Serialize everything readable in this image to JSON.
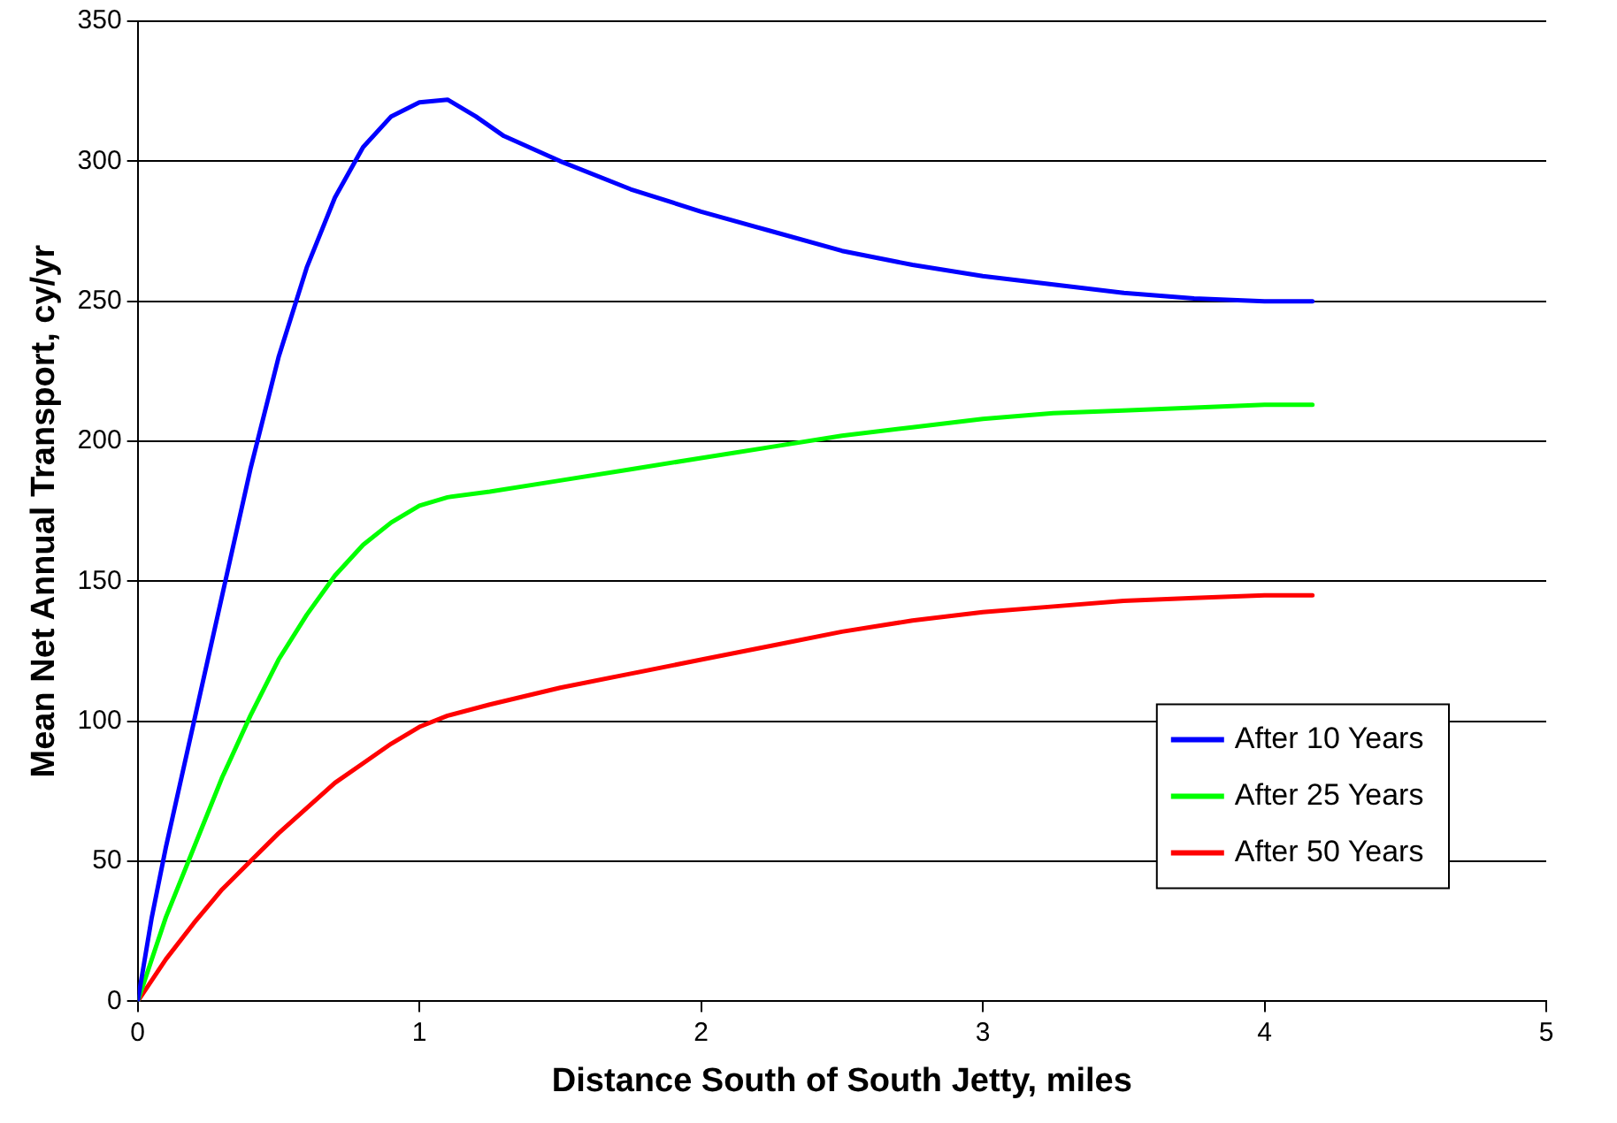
{
  "chart_data": {
    "type": "line",
    "xlabel": "Distance South of South Jetty, miles",
    "ylabel": "Mean Net Annual Transport, cy/yr",
    "xlim": [
      0,
      5
    ],
    "xticks": [
      0,
      1,
      2,
      3,
      4,
      5
    ],
    "ylim": [
      0,
      350
    ],
    "yticks": [
      0,
      50,
      100,
      150,
      200,
      250,
      300,
      350
    ],
    "grid": "y",
    "legend": "bottom right",
    "marker": "none",
    "line_style": "solid",
    "series": [
      {
        "name": "After 10 Years",
        "color": "#0000ff",
        "x": [
          0,
          0.05,
          0.1,
          0.2,
          0.3,
          0.4,
          0.5,
          0.6,
          0.7,
          0.8,
          0.9,
          1.0,
          1.1,
          1.2,
          1.3,
          1.5,
          1.75,
          2.0,
          2.25,
          2.5,
          2.75,
          3.0,
          3.25,
          3.5,
          3.75,
          4.0,
          4.17
        ],
        "values": [
          0,
          30,
          55,
          100,
          145,
          190,
          230,
          262,
          287,
          305,
          316,
          321,
          322,
          316,
          309,
          300,
          290,
          282,
          275,
          268,
          263,
          259,
          256,
          253,
          251,
          250,
          250
        ]
      },
      {
        "name": "After 25 Years",
        "color": "#00ff00",
        "x": [
          0,
          0.1,
          0.2,
          0.3,
          0.4,
          0.5,
          0.6,
          0.7,
          0.8,
          0.9,
          1.0,
          1.1,
          1.25,
          1.5,
          1.75,
          2.0,
          2.25,
          2.5,
          2.75,
          3.0,
          3.25,
          3.5,
          3.75,
          4.0,
          4.17
        ],
        "values": [
          0,
          30,
          55,
          80,
          102,
          122,
          138,
          152,
          163,
          171,
          177,
          180,
          182,
          186,
          190,
          194,
          198,
          202,
          205,
          208,
          210,
          211,
          212,
          213,
          213
        ]
      },
      {
        "name": "After 50 Years",
        "color": "#ff0000",
        "x": [
          0,
          0.1,
          0.2,
          0.3,
          0.4,
          0.5,
          0.6,
          0.7,
          0.8,
          0.9,
          1.0,
          1.1,
          1.25,
          1.5,
          1.75,
          2.0,
          2.25,
          2.5,
          2.75,
          3.0,
          3.25,
          3.5,
          3.75,
          4.0,
          4.17
        ],
        "values": [
          0,
          15,
          28,
          40,
          50,
          60,
          69,
          78,
          85,
          92,
          98,
          102,
          106,
          112,
          117,
          122,
          127,
          132,
          136,
          139,
          141,
          143,
          144,
          145,
          145
        ]
      }
    ]
  }
}
